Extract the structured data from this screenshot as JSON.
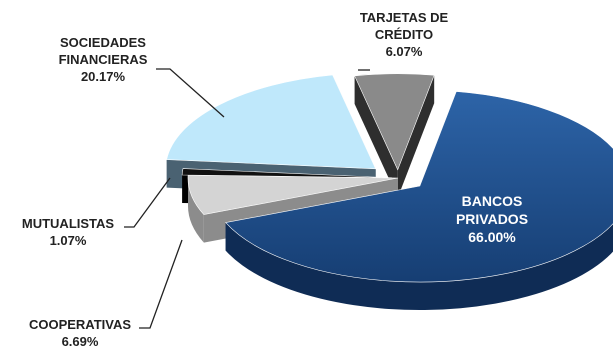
{
  "chart_data": {
    "type": "pie",
    "style": "3d-exploded",
    "legend": "none",
    "slices": [
      {
        "name_lines": [
          "BANCOS",
          "PRIVADOS"
        ],
        "value": 66.0,
        "value_label": "66.00%",
        "color": "#1f4e8c"
      },
      {
        "name_lines": [
          "COOPERATIVAS"
        ],
        "value": 6.69,
        "value_label": "6.69%",
        "color": "#d4d4d4"
      },
      {
        "name_lines": [
          "MUTUALISTAS"
        ],
        "value": 1.07,
        "value_label": "1.07%",
        "color": "#111111"
      },
      {
        "name_lines": [
          "SOCIEDADES",
          "FINANCIERAS"
        ],
        "value": 20.17,
        "value_label": "20.17%",
        "color": "#bfe8fb"
      },
      {
        "name_lines": [
          "TARJETAS DE",
          "CRÉDITO"
        ],
        "value": 6.07,
        "value_label": "6.07%",
        "color": "#8a8a8a"
      }
    ]
  }
}
